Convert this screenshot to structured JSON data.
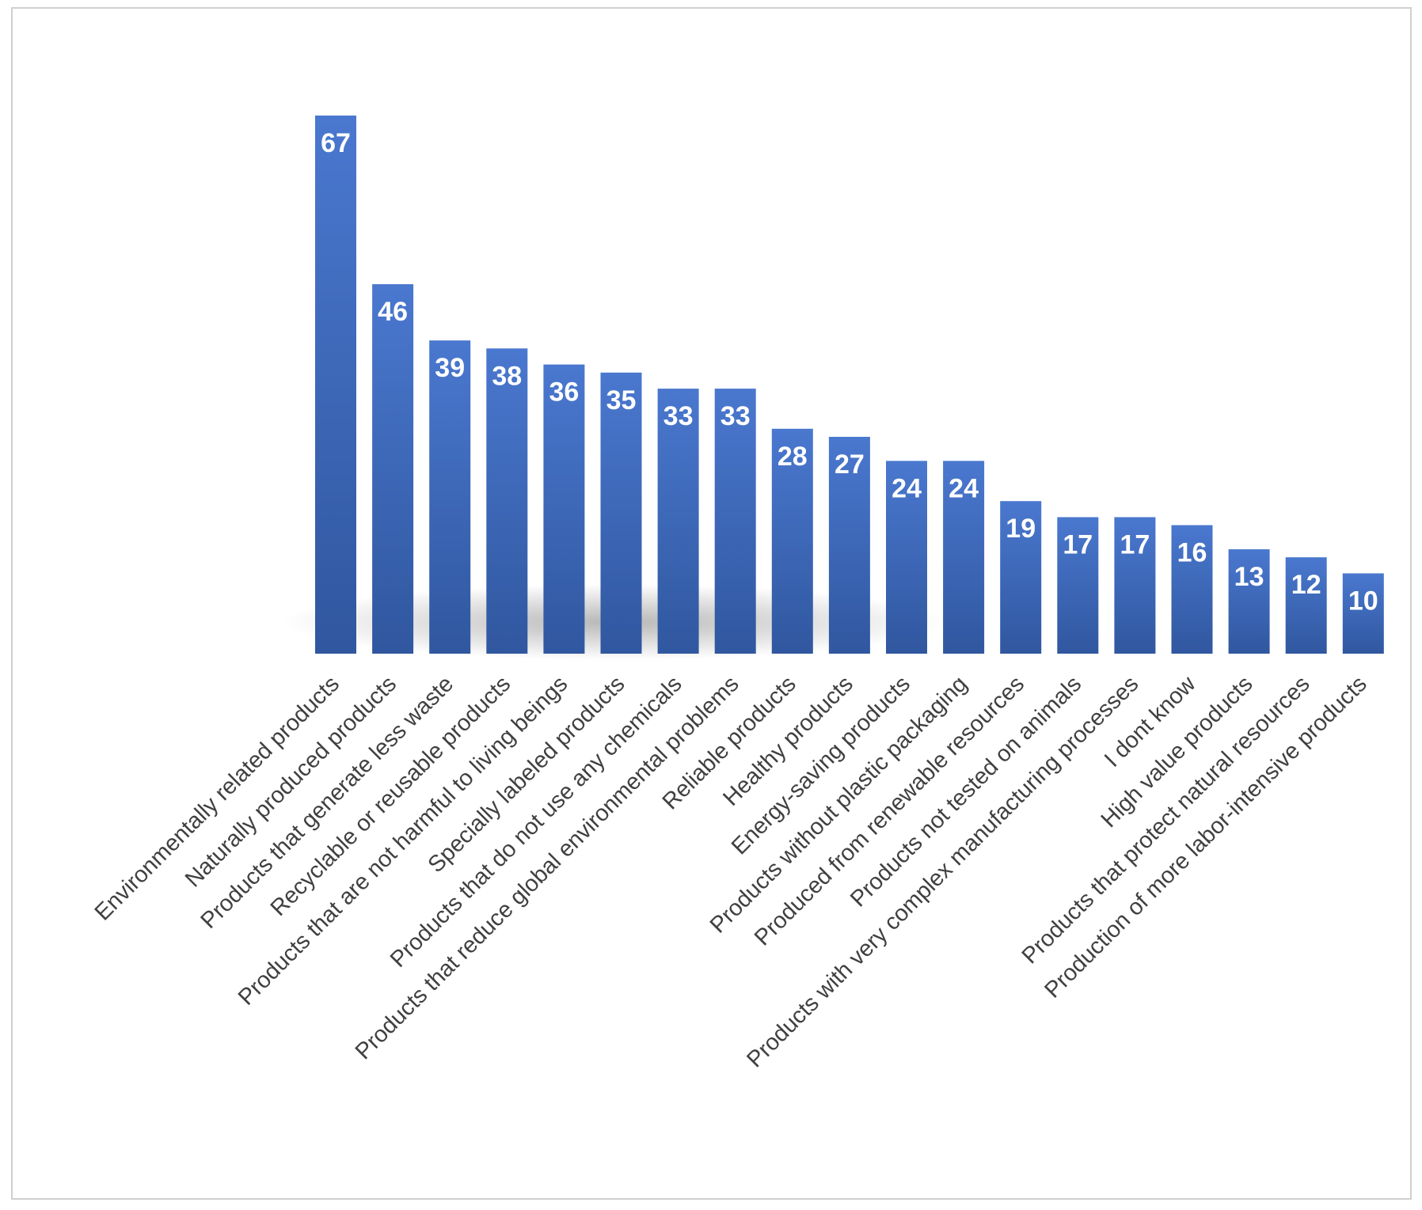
{
  "chart_data": {
    "type": "bar",
    "title": "",
    "xlabel": "",
    "ylabel": "",
    "ylim": [
      0,
      67
    ],
    "grid": false,
    "legend": "none",
    "categories": [
      "Environmentally related products",
      "Naturally produced products",
      "Products that generate less waste",
      "Recyclable or reusable products",
      "Products that are not harmful to living beings",
      "Specially labeled products",
      "Products that do not use any chemicals",
      "Products that reduce global environmental problems",
      "Reliable products",
      "Healthy products",
      "Energy-saving products",
      "Products without plastic packaging",
      "Produced from renewable resources",
      "Products not tested on animals",
      "Products with very complex manufacturing processes",
      "I dont know",
      "High value products",
      "Products that protect natural resources",
      "Production of more labor-intensive products"
    ],
    "values": [
      67,
      46,
      39,
      38,
      36,
      35,
      33,
      33,
      28,
      27,
      24,
      24,
      19,
      17,
      17,
      16,
      13,
      12,
      10
    ],
    "colors": {
      "bar_top": "#4a78cf",
      "bar_bottom": "#30579f",
      "value_label": "#ffffff",
      "category_label": "#404040",
      "frame_border": "#d0d0d0"
    }
  }
}
